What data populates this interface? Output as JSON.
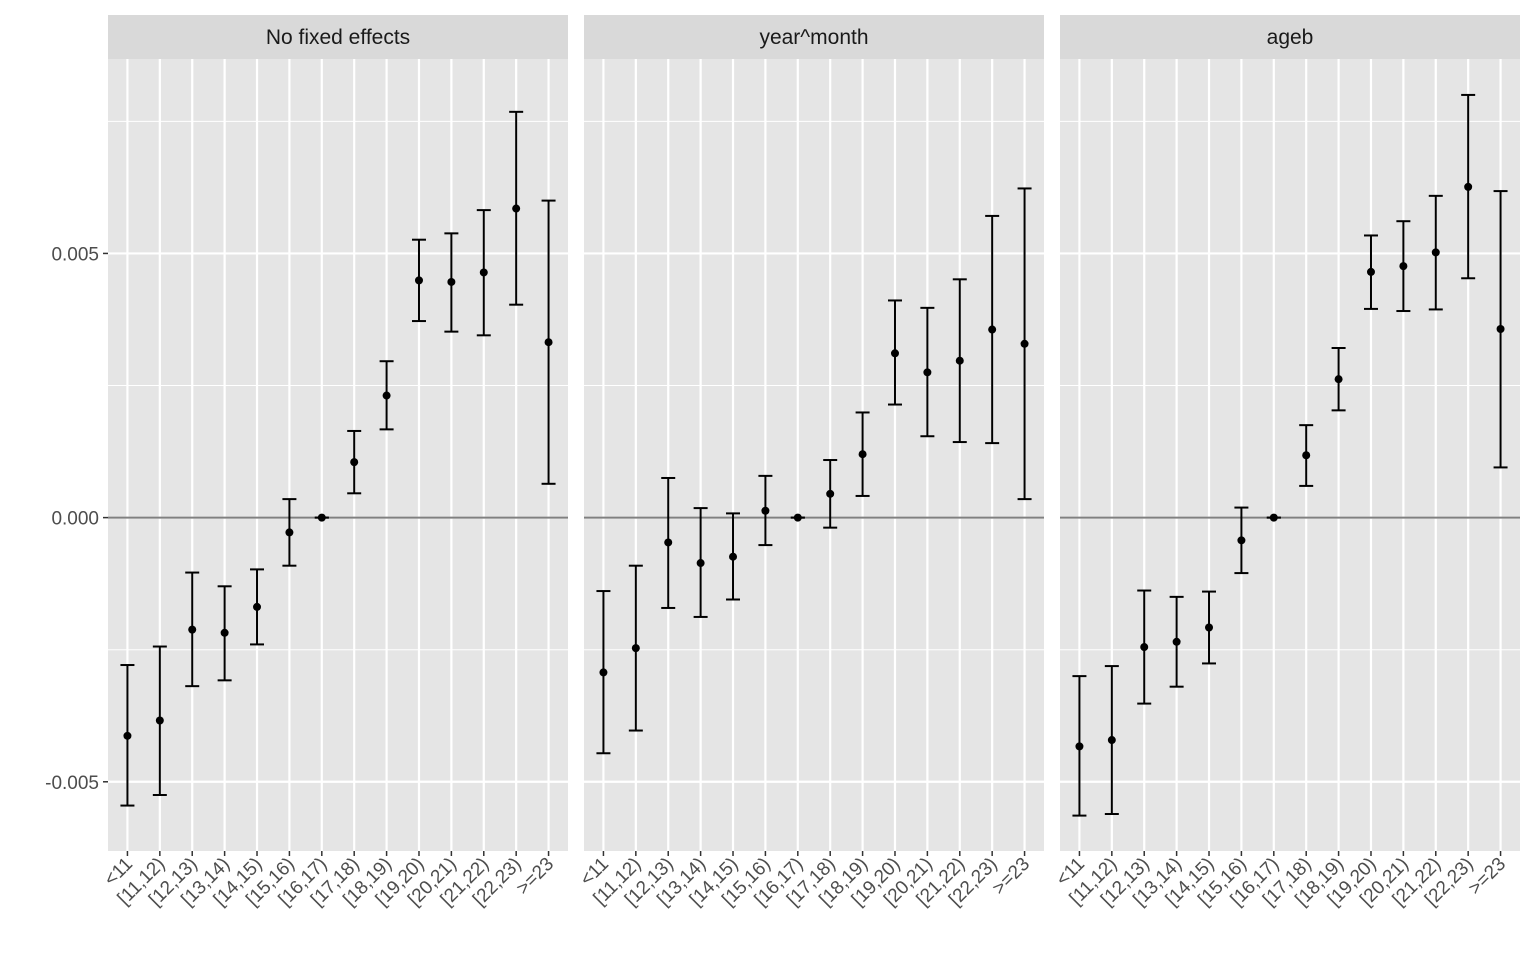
{
  "chart_data": {
    "type": "scatter",
    "subtype": "coefficient plot with error bars, faceted",
    "categories": [
      "<11",
      "[11,12)",
      "[12,13)",
      "[13,14)",
      "[14,15)",
      "[15,16)",
      "[16,17)",
      "[17,18)",
      "[18,19)",
      "[19,20)",
      "[20,21)",
      "[21,22)",
      "[22,23)",
      ">=23"
    ],
    "y_ticks": [
      {
        "value": -0.005,
        "label": "-0.005"
      },
      {
        "value": 0.0,
        "label": "0.000"
      },
      {
        "value": 0.005,
        "label": "0.005"
      }
    ],
    "ylim": [
      -0.00631,
      0.00868
    ],
    "reference_line": 0,
    "grid": true,
    "xlabel": "",
    "ylabel": "",
    "panels": [
      {
        "title": "No fixed effects",
        "estimate": [
          -0.00413,
          -0.00384,
          -0.00212,
          -0.00218,
          -0.00169,
          -0.00028,
          0.0,
          0.00105,
          0.00231,
          0.00449,
          0.00446,
          0.00464,
          0.00585,
          0.00332
        ],
        "lower": [
          -0.00545,
          -0.00525,
          -0.00319,
          -0.00308,
          -0.0024,
          -0.00091,
          0.0,
          0.00046,
          0.00167,
          0.00372,
          0.00352,
          0.00345,
          0.00403,
          0.00064
        ],
        "upper": [
          -0.00279,
          -0.00244,
          -0.00104,
          -0.0013,
          -0.00098,
          0.00035,
          0.0,
          0.00164,
          0.00296,
          0.00526,
          0.00538,
          0.00582,
          0.00768,
          0.006
        ]
      },
      {
        "title": "year^month",
        "estimate": [
          -0.00293,
          -0.00247,
          -0.00047,
          -0.00086,
          -0.00074,
          0.00013,
          0.0,
          0.00045,
          0.0012,
          0.00311,
          0.00275,
          0.00297,
          0.00356,
          0.00329
        ],
        "lower": [
          -0.00446,
          -0.00403,
          -0.00171,
          -0.00188,
          -0.00155,
          -0.00052,
          0.0,
          -0.00019,
          0.00041,
          0.00214,
          0.00154,
          0.00143,
          0.00141,
          0.00035
        ],
        "upper": [
          -0.00139,
          -0.00091,
          0.00075,
          0.00018,
          8e-05,
          0.00079,
          0.0,
          0.00109,
          0.00199,
          0.00411,
          0.00397,
          0.00451,
          0.00571,
          0.00623
        ]
      },
      {
        "title": "ageb",
        "estimate": [
          -0.00433,
          -0.00421,
          -0.00245,
          -0.00235,
          -0.00208,
          -0.00043,
          0.0,
          0.00118,
          0.00262,
          0.00465,
          0.00476,
          0.00502,
          0.00626,
          0.00357
        ],
        "lower": [
          -0.00564,
          -0.00561,
          -0.00352,
          -0.0032,
          -0.00276,
          -0.00105,
          0.0,
          0.0006,
          0.00203,
          0.00395,
          0.00391,
          0.00394,
          0.00453,
          0.00095
        ],
        "upper": [
          -0.003,
          -0.00281,
          -0.00138,
          -0.0015,
          -0.0014,
          0.00019,
          0.0,
          0.00175,
          0.00321,
          0.00534,
          0.00561,
          0.00609,
          0.008,
          0.00618
        ]
      }
    ],
    "colors": {
      "panel_background": "#e5e5e5",
      "grid": "#ffffff",
      "strip_background": "#d9d9d9",
      "zero_line": "#808080",
      "points": "#000000"
    }
  }
}
